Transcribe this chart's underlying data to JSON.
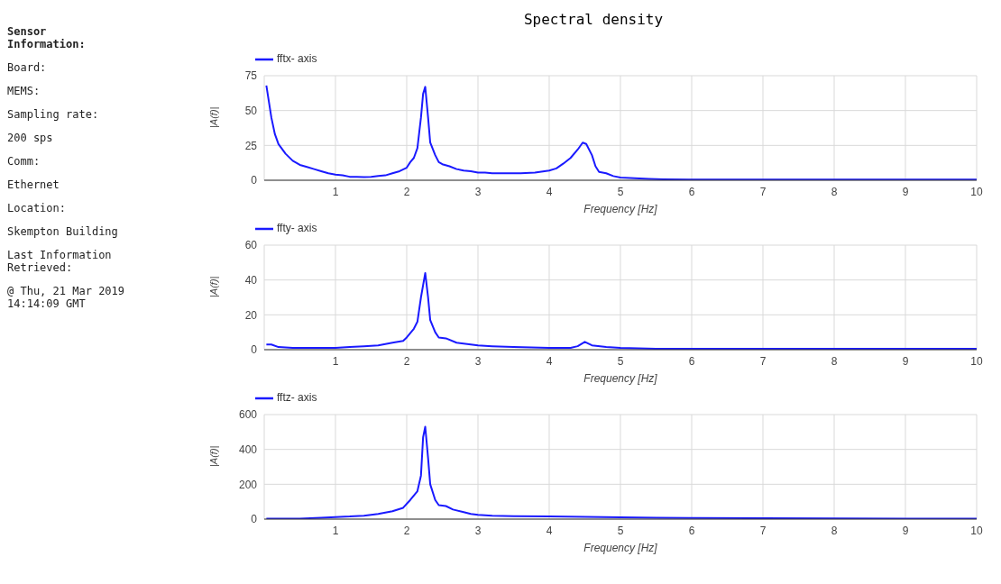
{
  "chart_data": [
    {
      "type": "other",
      "title": "Sensor Information:",
      "annotations": [
        "Board:",
        "MEMS:",
        "Sampling rate:",
        "200 sps",
        "Comm:",
        "Ethernet",
        "Location:",
        "Skempton Building",
        "Last Information Retrieved:",
        "@ Thu, 21 Mar 2019 14:14:09 GMT"
      ]
    },
    {
      "type": "line",
      "title": "Spectral density",
      "xlabel": "Frequency [Hz]",
      "ylabel": "|A(f)|",
      "xlim": [
        0,
        10
      ],
      "xticks": [
        1,
        2,
        3,
        4,
        5,
        6,
        7,
        8,
        9,
        10
      ],
      "ylim": [
        0,
        75
      ],
      "yticks": [
        0,
        25,
        50,
        75
      ],
      "grid": true,
      "legend": "top left",
      "marker": "none",
      "line_style": "solid",
      "series": [
        {
          "name": "fftx- axis",
          "color": "#1a1aff",
          "x": [
            0.03,
            0.1,
            0.15,
            0.2,
            0.3,
            0.4,
            0.5,
            0.6,
            0.7,
            0.8,
            0.9,
            1.0,
            1.1,
            1.2,
            1.3,
            1.4,
            1.5,
            1.6,
            1.7,
            1.8,
            1.9,
            2.0,
            2.05,
            2.1,
            2.15,
            2.2,
            2.23,
            2.26,
            2.3,
            2.33,
            2.4,
            2.45,
            2.5,
            2.6,
            2.7,
            2.8,
            2.9,
            3.0,
            3.1,
            3.2,
            3.4,
            3.6,
            3.8,
            4.0,
            4.1,
            4.2,
            4.3,
            4.4,
            4.47,
            4.52,
            4.6,
            4.65,
            4.7,
            4.8,
            4.9,
            5.0,
            5.2,
            5.4,
            5.6,
            6,
            6.5,
            7,
            7.5,
            8,
            8.5,
            9,
            9.5,
            10
          ],
          "values": [
            68,
            45,
            33,
            26,
            19,
            14,
            11,
            9.5,
            8,
            6.5,
            5,
            4,
            3.5,
            2.5,
            2.5,
            2.2,
            2.5,
            3,
            3.5,
            5,
            6.5,
            9,
            13,
            16,
            23,
            45,
            62,
            67,
            45,
            27,
            18,
            13,
            11.5,
            10,
            8,
            7,
            6.5,
            5.5,
            5.5,
            5,
            5,
            5,
            5.5,
            7,
            8.5,
            12,
            16,
            22,
            27,
            26,
            18,
            10,
            6,
            5,
            3,
            2,
            1.5,
            1,
            0.7,
            0.5,
            0.5,
            0.5,
            0.5,
            0.5,
            0.5,
            0.5,
            0.5,
            0.5
          ]
        }
      ]
    },
    {
      "type": "line",
      "xlabel": "Frequency [Hz]",
      "ylabel": "|A(f)|",
      "xlim": [
        0,
        10
      ],
      "xticks": [
        1,
        2,
        3,
        4,
        5,
        6,
        7,
        8,
        9,
        10
      ],
      "ylim": [
        0,
        60
      ],
      "yticks": [
        0,
        20,
        40,
        60
      ],
      "grid": true,
      "legend": "top left",
      "marker": "none",
      "line_style": "solid",
      "series": [
        {
          "name": "ffty- axis",
          "color": "#1a1aff",
          "x": [
            0.03,
            0.1,
            0.2,
            0.4,
            0.6,
            0.8,
            1.0,
            1.2,
            1.4,
            1.6,
            1.8,
            1.95,
            2.0,
            2.1,
            2.15,
            2.2,
            2.26,
            2.3,
            2.33,
            2.4,
            2.45,
            2.55,
            2.7,
            2.9,
            3.0,
            3.2,
            3.5,
            4,
            4.3,
            4.4,
            4.5,
            4.6,
            4.8,
            5,
            5.5,
            6,
            7,
            8,
            9,
            10
          ],
          "values": [
            3,
            3,
            1.5,
            1,
            1,
            1,
            1,
            1.5,
            2,
            2.5,
            4,
            5,
            7,
            12,
            16,
            30,
            44,
            30,
            17,
            10,
            7,
            6.5,
            4,
            3,
            2.5,
            2,
            1.5,
            1,
            1,
            2,
            4.5,
            2.5,
            1.5,
            1,
            0.5,
            0.5,
            0.5,
            0.5,
            0.5,
            0.5
          ]
        }
      ]
    },
    {
      "type": "line",
      "xlabel": "Frequency [Hz]",
      "ylabel": "|A(f)|",
      "xlim": [
        0,
        10
      ],
      "xticks": [
        1,
        2,
        3,
        4,
        5,
        6,
        7,
        8,
        9,
        10
      ],
      "ylim": [
        0,
        600
      ],
      "yticks": [
        0,
        200,
        400,
        600
      ],
      "grid": true,
      "legend": "top left",
      "marker": "none",
      "line_style": "solid",
      "series": [
        {
          "name": "fftz- axis",
          "color": "#1a1aff",
          "x": [
            0.03,
            0.5,
            0.8,
            1.0,
            1.2,
            1.4,
            1.6,
            1.8,
            1.95,
            2.05,
            2.15,
            2.2,
            2.23,
            2.26,
            2.3,
            2.33,
            2.4,
            2.45,
            2.55,
            2.65,
            2.8,
            2.9,
            3.0,
            3.2,
            3.5,
            4,
            4.5,
            5,
            5.5,
            6,
            7,
            8,
            9,
            10
          ],
          "values": [
            2,
            3,
            8,
            12,
            15,
            20,
            30,
            45,
            65,
            110,
            160,
            250,
            470,
            530,
            350,
            200,
            110,
            80,
            75,
            55,
            40,
            30,
            25,
            20,
            17,
            15,
            13,
            10,
            8,
            6,
            5,
            4,
            3,
            3
          ]
        }
      ]
    }
  ]
}
